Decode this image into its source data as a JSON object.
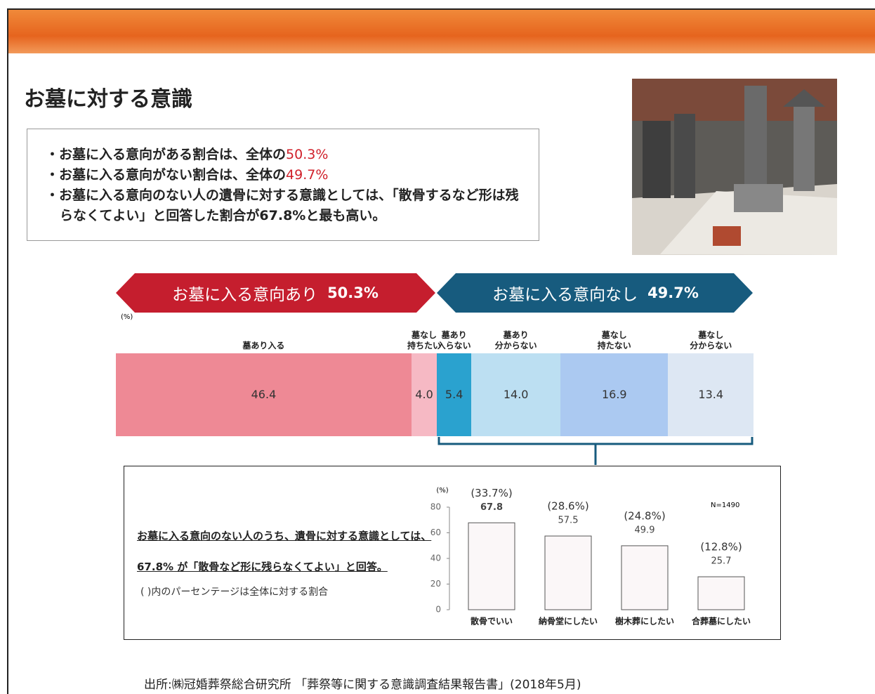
{
  "title": "お墓に対する意識",
  "bullets": [
    {
      "text": "お墓に入る意向がある割合は、全体の",
      "highlight": "50.3%"
    },
    {
      "text": "お墓に入る意向がない割合は、全体の",
      "highlight": "49.7%"
    },
    {
      "text": "お墓に入る意向のない人の遺骨に対する意識としては、「散骨するなど形は残らなくてよい」と回答した割合が67.8%と最も高い。"
    }
  ],
  "banners": [
    {
      "label": "お墓に入る意向あり",
      "value": "50.3%"
    },
    {
      "label": "お墓に入る意向なし",
      "value": "49.7%"
    }
  ],
  "chart_data": [
    {
      "type": "stacked_bar",
      "unit": "(%)",
      "series": [
        {
          "name": "墓あり入る",
          "color": "#ee8995",
          "values": [
            46.4
          ],
          "value_labels": [
            "46.4"
          ]
        },
        {
          "name": "墓なし\n持ちたい",
          "color": "#f6b9c4",
          "values": [
            4.0
          ],
          "value_labels": [
            "4.0"
          ]
        },
        {
          "name": "墓あり\n入らない",
          "color": "#2aa2cf",
          "values": [
            5.4
          ],
          "value_labels": [
            "5.4"
          ]
        },
        {
          "name": "墓あり\n分からない",
          "color": "#bcdff2",
          "values": [
            14.0
          ],
          "value_labels": [
            "14.0"
          ]
        },
        {
          "name": "墓なし\n持たない",
          "color": "#abc9f1",
          "values": [
            16.9
          ],
          "value_labels": [
            "16.9"
          ]
        },
        {
          "name": "墓なし\n分からない",
          "color": "#dde7f3",
          "values": [
            13.4
          ],
          "value_labels": [
            "13.4"
          ]
        }
      ]
    },
    {
      "type": "bar",
      "unit": "(%)",
      "note": "N=1490",
      "categories": [
        "散骨でいい",
        "納骨堂にしたい",
        "樹木葬にしたい",
        "合葬墓にしたい"
      ],
      "values": [
        67.8,
        57.5,
        49.9,
        25.7
      ],
      "annotations": [
        "(33.7%)",
        "(28.6%)",
        "(24.8%)",
        "(12.8%)"
      ],
      "color": "#fbf7f8",
      "ylim": [
        0,
        80
      ],
      "yticks": [
        0,
        20,
        40,
        60,
        80
      ]
    }
  ],
  "summary": {
    "line1": "お墓に入る意向のない人のうち、遺骨に対する意識としては、",
    "line2": "67.8% が「散骨など形に残らなくてよい」と回答。",
    "note": "( )内のパーセンテージは全体に対する割合"
  },
  "source": "出所:㈱冠婚葬祭総合研究所 「葬祭等に関する意識調査結果報告書」(2018年5月)"
}
